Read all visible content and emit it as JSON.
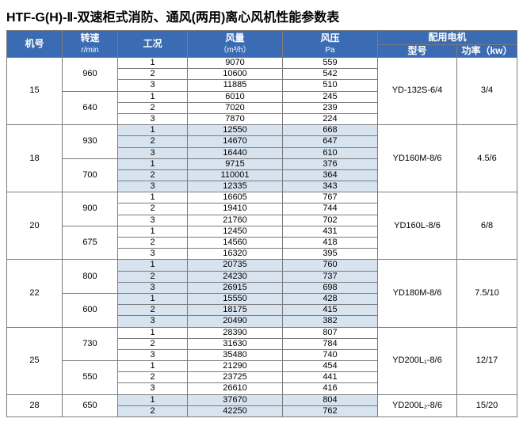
{
  "title": "HTF-G(H)-Ⅱ-双速柜式消防、通风(两用)离心风机性能参数表",
  "headers": {
    "machine": "机号",
    "speed": "转速",
    "speed_unit": "r/min",
    "cond": "工况",
    "airflow": "风量",
    "airflow_unit": "（m³/h）",
    "pressure": "风压",
    "pressure_unit": "Pa",
    "motor_group": "配用电机",
    "motor_model": "型号",
    "motor_power": "功率（kw）"
  },
  "colors": {
    "header_bg": "#3b6cb3",
    "header_fg": "#ffffff",
    "border": "#7b7b7b",
    "alt_bg": "#d8e3f0",
    "bg": "#ffffff"
  },
  "groups": [
    {
      "machine": "15",
      "motor": "YD-132S-6/4",
      "power": "3/4",
      "alt": false,
      "speeds": [
        {
          "rpm": "960",
          "rows": [
            [
              "1",
              "9070",
              "559"
            ],
            [
              "2",
              "10600",
              "542"
            ],
            [
              "3",
              "11885",
              "510"
            ]
          ]
        },
        {
          "rpm": "640",
          "rows": [
            [
              "1",
              "6010",
              "245"
            ],
            [
              "2",
              "7020",
              "239"
            ],
            [
              "3",
              "7870",
              "224"
            ]
          ]
        }
      ]
    },
    {
      "machine": "18",
      "motor": "YD160M-8/6",
      "power": "4.5/6",
      "alt": true,
      "speeds": [
        {
          "rpm": "930",
          "rows": [
            [
              "1",
              "12550",
              "668"
            ],
            [
              "2",
              "14670",
              "647"
            ],
            [
              "3",
              "16440",
              "610"
            ]
          ]
        },
        {
          "rpm": "700",
          "rows": [
            [
              "1",
              "9715",
              "376"
            ],
            [
              "2",
              "110001",
              "364"
            ],
            [
              "3",
              "12335",
              "343"
            ]
          ]
        }
      ]
    },
    {
      "machine": "20",
      "motor": "YD160L-8/6",
      "power": "6/8",
      "alt": false,
      "speeds": [
        {
          "rpm": "900",
          "rows": [
            [
              "1",
              "16605",
              "767"
            ],
            [
              "2",
              "19410",
              "744"
            ],
            [
              "3",
              "21760",
              "702"
            ]
          ]
        },
        {
          "rpm": "675",
          "rows": [
            [
              "1",
              "12450",
              "431"
            ],
            [
              "2",
              "14560",
              "418"
            ],
            [
              "3",
              "16320",
              "395"
            ]
          ]
        }
      ]
    },
    {
      "machine": "22",
      "motor": "YD180M-8/6",
      "power": "7.5/10",
      "alt": true,
      "speeds": [
        {
          "rpm": "800",
          "rows": [
            [
              "1",
              "20735",
              "760"
            ],
            [
              "2",
              "24230",
              "737"
            ],
            [
              "3",
              "26915",
              "698"
            ]
          ]
        },
        {
          "rpm": "600",
          "rows": [
            [
              "1",
              "15550",
              "428"
            ],
            [
              "2",
              "18175",
              "415"
            ],
            [
              "3",
              "20490",
              "382"
            ]
          ]
        }
      ]
    },
    {
      "machine": "25",
      "motor": "YD200L₁-8/6",
      "power": "12/17",
      "alt": false,
      "speeds": [
        {
          "rpm": "730",
          "rows": [
            [
              "1",
              "28390",
              "807"
            ],
            [
              "2",
              "31630",
              "784"
            ],
            [
              "3",
              "35480",
              "740"
            ]
          ]
        },
        {
          "rpm": "550",
          "rows": [
            [
              "1",
              "21290",
              "454"
            ],
            [
              "2",
              "23725",
              "441"
            ],
            [
              "3",
              "26610",
              "416"
            ]
          ]
        }
      ]
    },
    {
      "machine": "28",
      "motor": "YD200L₂-8/6",
      "power": "15/20",
      "alt": true,
      "speeds": [
        {
          "rpm": "650",
          "rows": [
            [
              "1",
              "37670",
              "804"
            ],
            [
              "2",
              "42250",
              "762"
            ]
          ]
        }
      ]
    }
  ]
}
